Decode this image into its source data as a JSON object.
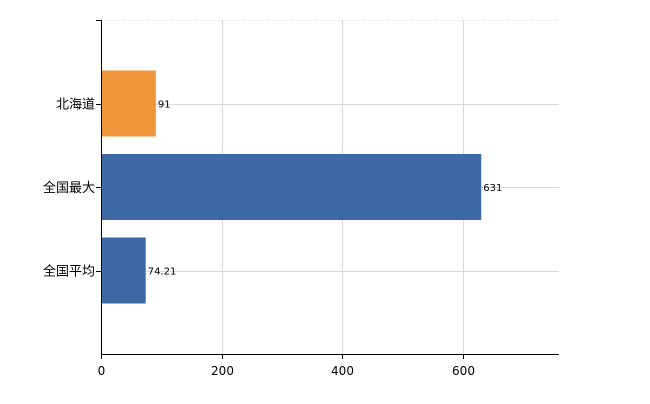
{
  "chart_data": {
    "type": "bar",
    "orientation": "horizontal",
    "categories": [
      "北海道",
      "全国最大",
      "全国平均"
    ],
    "values": [
      91,
      631,
      74.21
    ],
    "value_labels": [
      "91",
      "631",
      "74.21"
    ],
    "bar_colors": [
      "#F0963A",
      "#3D6AA5",
      "#3D6AA5"
    ],
    "title": "",
    "xlabel": "",
    "ylabel": "",
    "xlim": [
      0,
      760
    ],
    "xticks": [
      0,
      200,
      400,
      600
    ],
    "grid": true,
    "legend": "none"
  },
  "colors": {
    "axis": "#000000",
    "grid": "#d9d9d9",
    "text": "#000000"
  }
}
